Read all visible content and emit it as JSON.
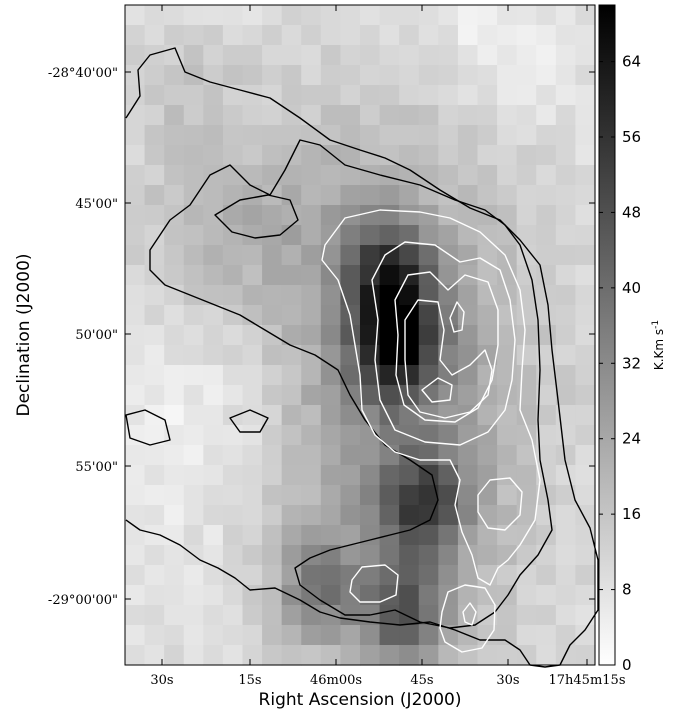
{
  "chart_data": {
    "type": "heatmap",
    "title": "",
    "xlabel": "Right Ascension (J2000)",
    "ylabel": "Declination (J2000)",
    "x_tick_labels": [
      "30s",
      "15s",
      "46m00s",
      "45s",
      "30s",
      "17h45m15s"
    ],
    "y_tick_labels": [
      "-28°40'00\"",
      "45'00\"",
      "50'00\"",
      "55'00\"",
      "-29°00'00\""
    ],
    "colorbar": {
      "label_main": "K.Km s",
      "label_sup": "-1",
      "ticks": [
        0,
        8,
        16,
        24,
        32,
        40,
        48,
        56,
        64
      ],
      "range": [
        0,
        70
      ],
      "colormap": "gray_r"
    },
    "grid_cols": 24,
    "grid_rows": 33,
    "intensity_peaks": [
      {
        "label": "main core",
        "ra_col": 13.8,
        "dec_row": 17.0,
        "value": 68
      },
      {
        "label": "north core",
        "ra_col": 13.5,
        "dec_row": 13.5,
        "value": 58
      },
      {
        "label": "south-east clump",
        "ra_col": 15.3,
        "dec_row": 25.0,
        "value": 54
      },
      {
        "label": "southern clump",
        "ra_col": 14.2,
        "dec_row": 30.5,
        "value": 52
      },
      {
        "label": "south-west clump",
        "ra_col": 9.8,
        "dec_row": 29.2,
        "value": 45
      }
    ],
    "contours": {
      "dark_levels_count": 2,
      "light_levels_count": 5,
      "dark_color": "#000000",
      "light_color": "#ffffff"
    }
  }
}
